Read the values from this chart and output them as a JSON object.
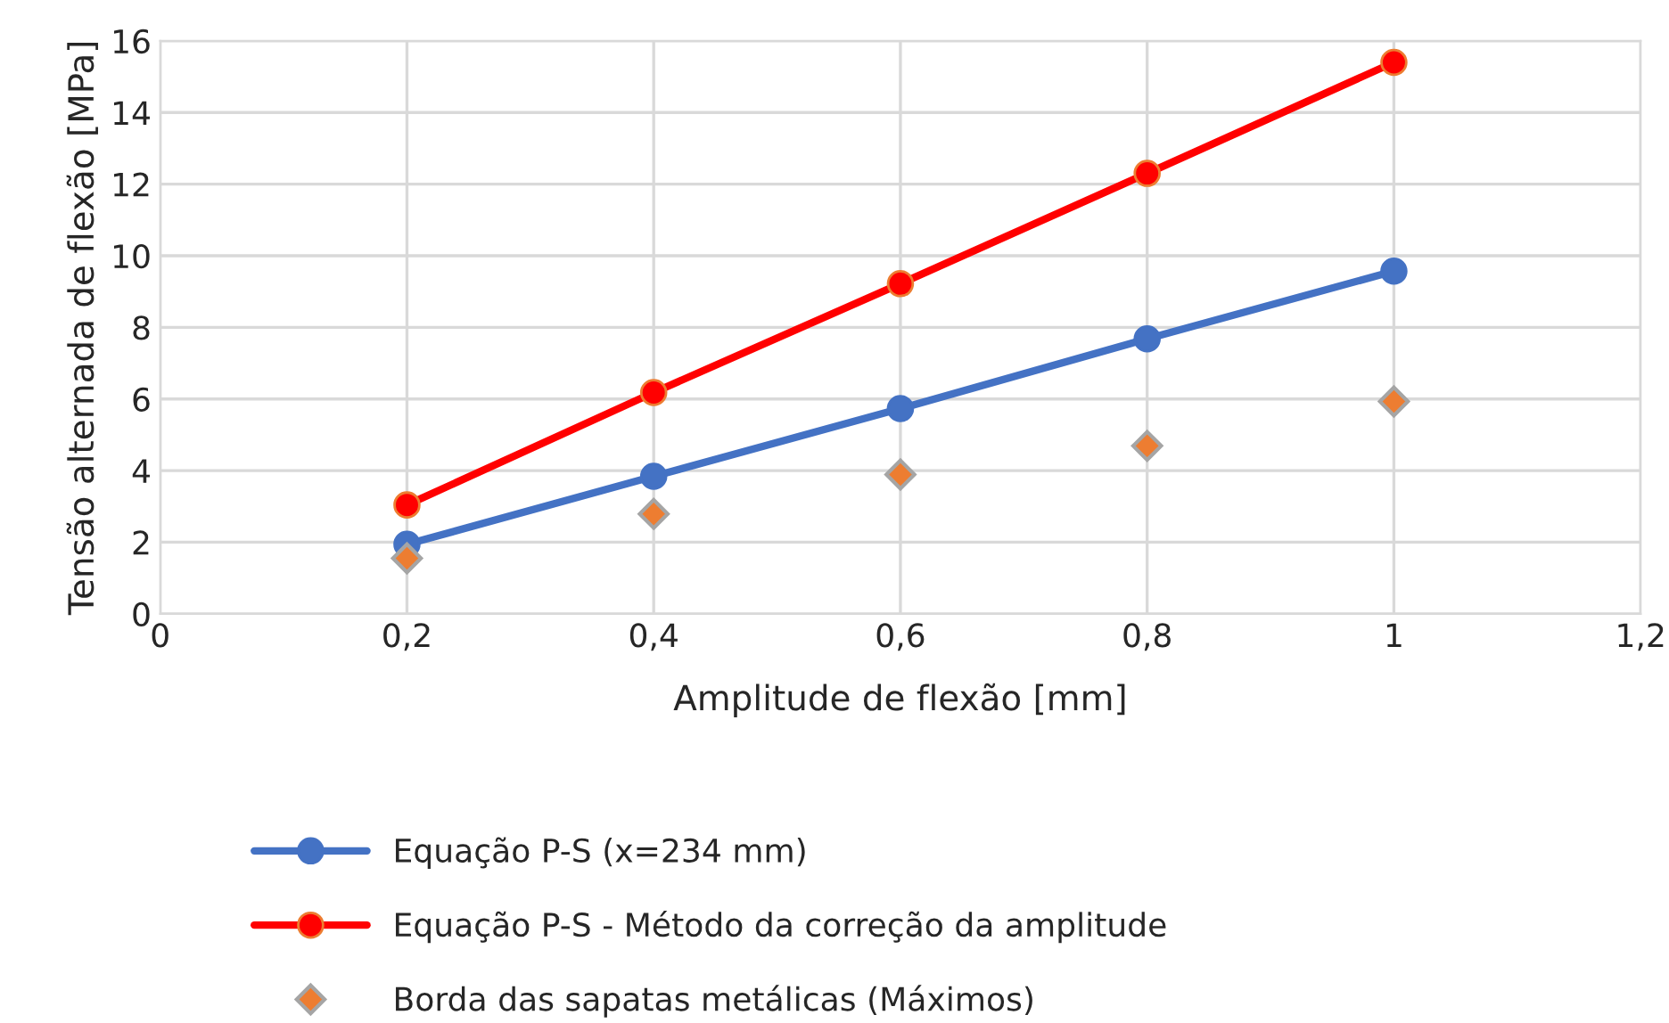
{
  "chart_data": {
    "type": "line",
    "xlabel": "Amplitude de flexão [mm]",
    "ylabel": "Tensão alternada de flexão [MPa]",
    "x": [
      0.2,
      0.4,
      0.6,
      0.8,
      1.0
    ],
    "series": [
      {
        "name": "Equação P-S (x=234 mm)",
        "color": "#4472c4",
        "values": [
          1.94,
          3.84,
          5.73,
          7.68,
          9.57
        ],
        "marker": "circle"
      },
      {
        "name": "Equação P-S - Método da correção da amplitude",
        "color": "#ff0000",
        "values": [
          3.04,
          6.18,
          9.22,
          12.3,
          15.4
        ],
        "marker": "circle"
      },
      {
        "name": "Borda das sapatas metálicas (Máximos)",
        "type": "scatter",
        "color": "#ed7d31",
        "values": [
          1.55,
          2.79,
          3.89,
          4.69,
          5.93
        ],
        "marker": "diamond"
      }
    ],
    "xlim": [
      0,
      1.2
    ],
    "xticks": [
      0,
      {
        "value": 0.2,
        "label": "0,2"
      },
      {
        "value": 0.4,
        "label": "0,4"
      },
      {
        "value": 0.6,
        "label": "0,6"
      },
      {
        "value": 0.8,
        "label": "0,8"
      },
      1,
      {
        "value": 1.2,
        "label": "1,2"
      }
    ],
    "ylim": [
      0,
      16
    ],
    "yticks": [
      0,
      2,
      4,
      6,
      8,
      10,
      12,
      14,
      16
    ],
    "grid": true,
    "legend": "bottom",
    "line_style": "solid"
  }
}
